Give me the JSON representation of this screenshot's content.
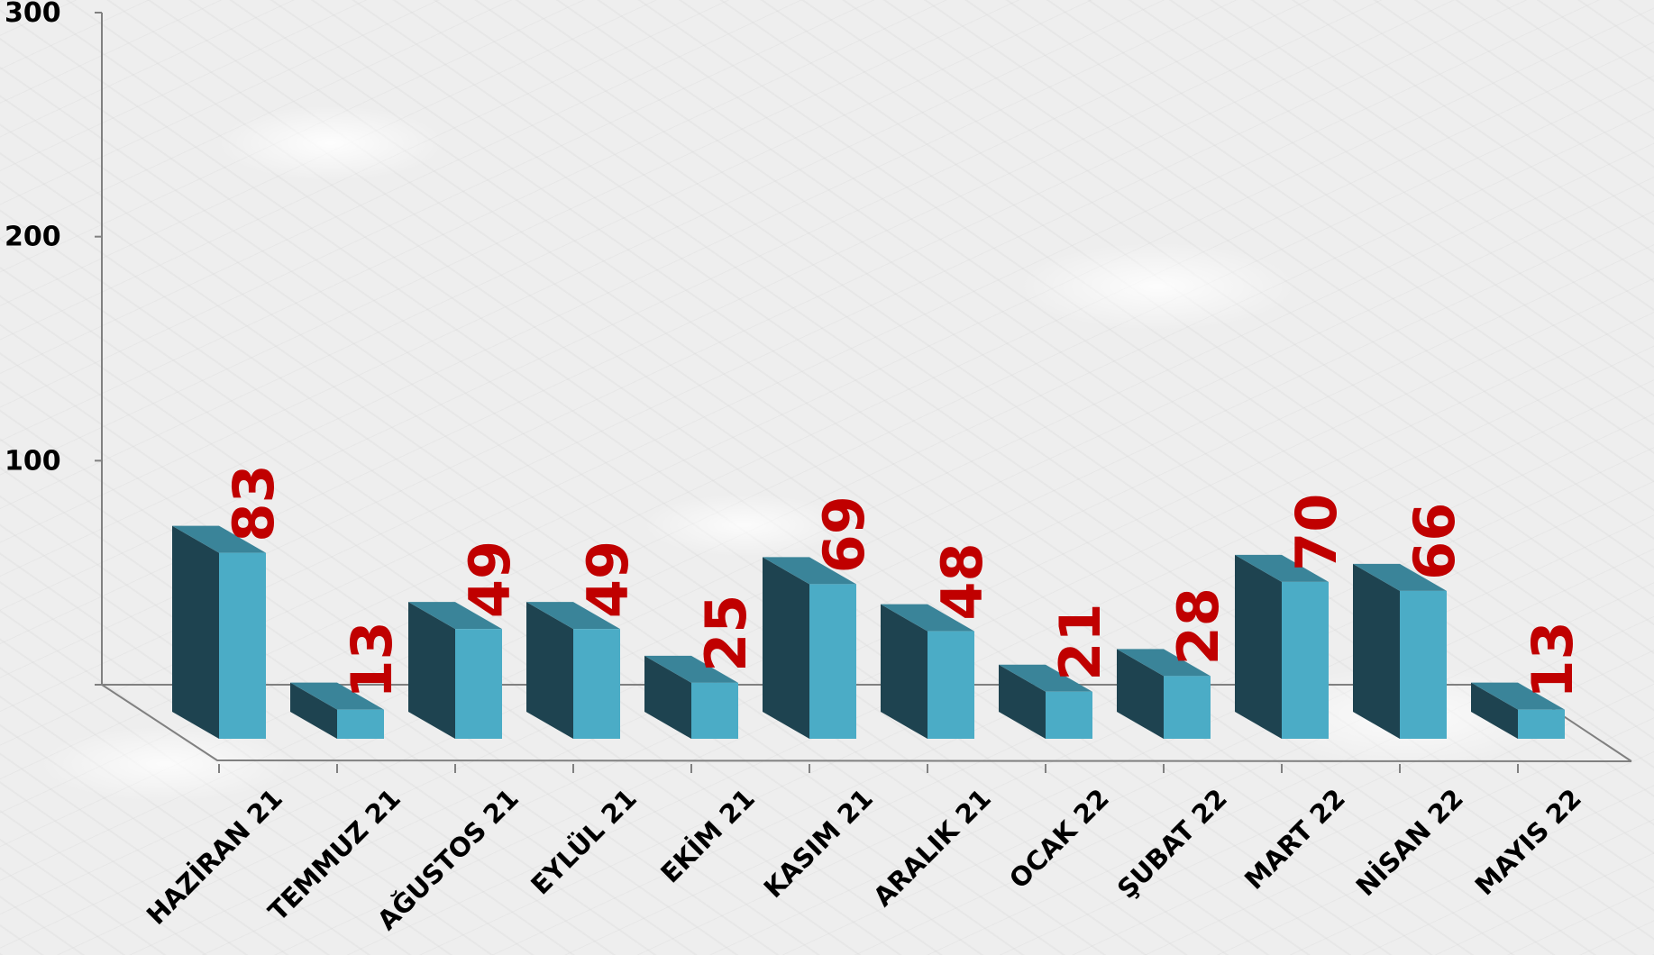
{
  "chart_data": {
    "type": "bar",
    "categories": [
      "HAZİRAN 21",
      "TEMMUZ 21",
      "AĞUSTOS 21",
      "EYLÜL 21",
      "EKİM 21",
      "KASIM 21",
      "ARALIK 21",
      "OCAK 22",
      "ŞUBAT 22",
      "MART 22",
      "NİSAN 22",
      "MAYIS 22"
    ],
    "values": [
      83,
      13,
      49,
      49,
      25,
      69,
      48,
      21,
      28,
      70,
      66,
      13
    ],
    "data_labels": [
      "83",
      "13",
      "49",
      "49",
      "25",
      "69",
      "48",
      "21",
      "28",
      "70",
      "66",
      "13"
    ],
    "y_ticks": [
      "300",
      "200",
      "100"
    ],
    "ylim": [
      0,
      300
    ],
    "title": "",
    "xlabel": "",
    "ylabel": "",
    "grid": false,
    "legend": "none",
    "style": "3d",
    "colors": {
      "bar_front": "#4bacc6",
      "bar_side": "#1e4350",
      "bar_top": "#3a8499",
      "data_label": "#c00000",
      "axis": "#808080"
    }
  }
}
